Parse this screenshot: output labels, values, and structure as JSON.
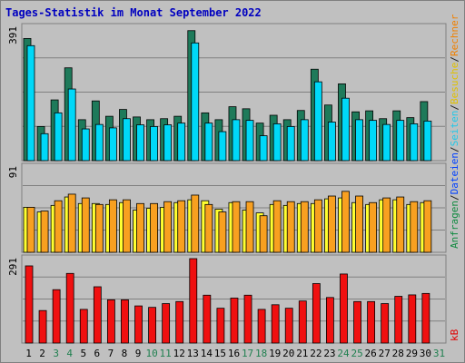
{
  "chart_data": {
    "title": "Tages-Statistik im Monat September 2022",
    "x": [
      "1",
      "2",
      "3",
      "4",
      "5",
      "6",
      "7",
      "8",
      "9",
      "10",
      "11",
      "12",
      "13",
      "14",
      "15",
      "16",
      "17",
      "18",
      "19",
      "20",
      "21",
      "22",
      "23",
      "24",
      "25",
      "26",
      "27",
      "28",
      "29",
      "30",
      "31"
    ],
    "weekend_days": [
      "3",
      "4",
      "10",
      "11",
      "17",
      "18",
      "24",
      "25",
      "31"
    ],
    "panels": [
      {
        "type": "bar",
        "ylim": [
          0,
          391
        ],
        "max_label": "391",
        "series": [
          {
            "name": "Anfragen",
            "color": "#1e7a5a",
            "values": [
              358,
              100,
              178,
              272,
              120,
              175,
              130,
              150,
              128,
              120,
              123,
              130,
              381,
              140,
              120,
              158,
              152,
              110,
              133,
              120,
              147,
              268,
              163,
              225,
              143,
              146,
              123,
              146,
              126,
              173,
              null
            ]
          },
          {
            "name": "Dateien",
            "color": "#00d8f8",
            "values": [
              337,
              79,
              140,
              210,
              93,
              106,
              96,
              123,
              105,
              100,
              105,
              110,
              345,
              110,
              85,
              120,
              118,
              73,
              108,
              100,
              120,
              231,
              113,
              183,
              120,
              118,
              106,
              118,
              108,
              116,
              null
            ]
          }
        ]
      },
      {
        "type": "bar",
        "ylim": [
          0,
          91
        ],
        "max_label": "91",
        "series": [
          {
            "name": "Seiten",
            "color": "#ffff30",
            "values": [
              48,
              43,
              50,
              59,
              52,
              52,
              51,
              53,
              45,
              47,
              48,
              53,
              56,
              55,
              46,
              53,
              45,
              42,
              51,
              50,
              52,
              52,
              57,
              58,
              53,
              51,
              56,
              56,
              51,
              53,
              null
            ]
          },
          {
            "name": "Besuche",
            "color": "#f8a020",
            "values": [
              48,
              44,
              55,
              62,
              58,
              51,
              56,
              56,
              52,
              52,
              54,
              55,
              61,
              51,
              43,
              54,
              54,
              39,
              55,
              54,
              54,
              56,
              60,
              65,
              60,
              53,
              58,
              59,
              54,
              55,
              null
            ]
          }
        ]
      },
      {
        "type": "bar",
        "ylim": [
          0,
          291
        ],
        "max_label": "291",
        "series": [
          {
            "name": "kB",
            "color": "#f01010",
            "values": [
              266,
              112,
              184,
              240,
              116,
              194,
              149,
              149,
              128,
              123,
              136,
              143,
              291,
              165,
              120,
              155,
              165,
              116,
              132,
              120,
              145,
              205,
              157,
              238,
              143,
              143,
              136,
              161,
              166,
              171,
              null
            ]
          }
        ]
      }
    ],
    "right_labels": [
      {
        "text": "Anfragen",
        "color": "#108a40"
      },
      {
        "text": "/",
        "color": "#202020"
      },
      {
        "text": "Dateien",
        "color": "#0040ff"
      },
      {
        "text": "/",
        "color": "#202020"
      },
      {
        "text": "Seiten",
        "color": "#20c8e8"
      },
      {
        "text": "/",
        "color": "#202020"
      },
      {
        "text": "Besuche",
        "color": "#e0c000"
      },
      {
        "text": "/",
        "color": "#202020"
      },
      {
        "text": "Rechner",
        "color": "#f08000"
      }
    ],
    "kb_label": {
      "text": "kB",
      "color": "#e00000"
    },
    "colors": {
      "weekday": "#000000",
      "weekend": "#208050",
      "title": "#0000c0",
      "plot_bg": "#c0c0c0"
    }
  }
}
